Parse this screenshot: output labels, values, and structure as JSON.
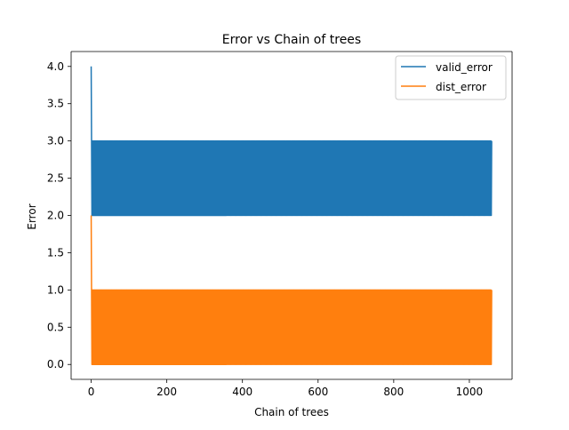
{
  "chart_data": {
    "type": "line",
    "title": "Error vs Chain of trees",
    "xlabel": "Chain of trees",
    "ylabel": "Error",
    "xlim": [
      -53,
      1113
    ],
    "ylim": [
      -0.2,
      4.2
    ],
    "xticks": [
      0,
      200,
      400,
      600,
      800,
      1000
    ],
    "xtick_labels": [
      "0",
      "200",
      "400",
      "600",
      "800",
      "1000"
    ],
    "yticks": [
      0.0,
      0.5,
      1.0,
      1.5,
      2.0,
      2.5,
      3.0,
      3.5,
      4.0
    ],
    "ytick_labels": [
      "0.0",
      "0.5",
      "1.0",
      "1.5",
      "2.0",
      "2.5",
      "3.0",
      "3.5",
      "4.0"
    ],
    "grid": false,
    "legend_position": "top-right",
    "n_points": 1060,
    "series": [
      {
        "name": "valid_error",
        "color": "#1f77b4",
        "initial": [
          4,
          3
        ],
        "oscillation": [
          2,
          3
        ]
      },
      {
        "name": "dist_error",
        "color": "#ff7f0e",
        "initial": [
          2,
          1
        ],
        "oscillation": [
          0,
          1
        ]
      }
    ]
  }
}
